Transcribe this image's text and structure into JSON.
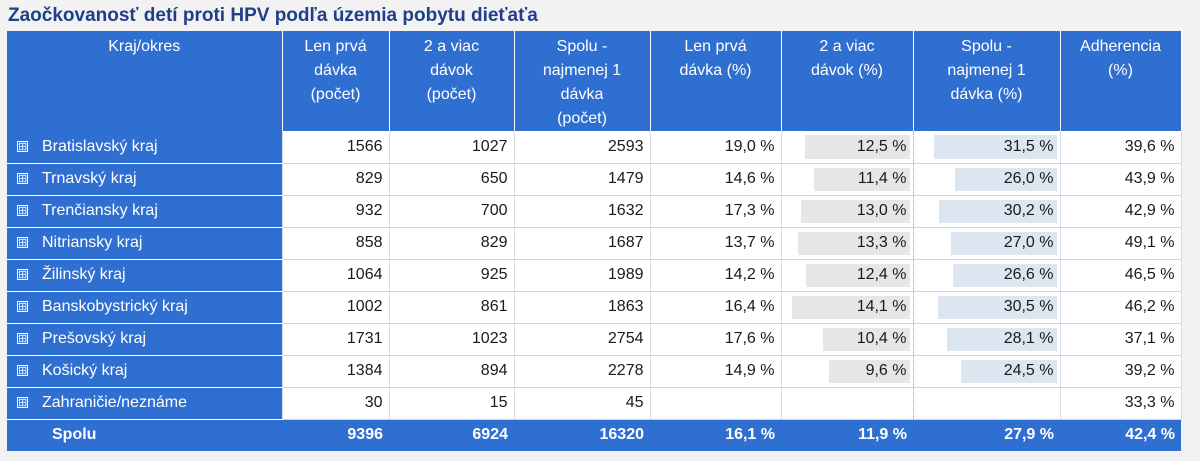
{
  "title": "Zaočkovanosť detí proti HPV podľa územia pobytu dieťaťa",
  "chart_data": {
    "type": "table",
    "columns": [
      "Kraj/okres",
      "Len prvá\ndávka\n(počet)",
      "2 a viac\ndávok\n(počet)",
      "Spolu -\nnajmenej 1\ndávka\n(počet)",
      "Len prvá\ndávka (%)",
      "2 a viac\ndávok (%)",
      "Spolu -\nnajmenej 1\ndávka (%)",
      "Adherencia\n(%)"
    ],
    "expand_symbol": "⊞",
    "rows": [
      {
        "name": "Bratislavský kraj",
        "first": "1566",
        "multi": "1027",
        "total": "2593",
        "first_pct": "19,0 %",
        "multi_pct": "12,5 %",
        "total_pct": "31,5 %",
        "adherence": "39,6 %",
        "multi_val": 12.5,
        "total_val": 31.5
      },
      {
        "name": "Trnavský kraj",
        "first": "829",
        "multi": "650",
        "total": "1479",
        "first_pct": "14,6 %",
        "multi_pct": "11,4 %",
        "total_pct": "26,0 %",
        "adherence": "43,9 %",
        "multi_val": 11.4,
        "total_val": 26.0
      },
      {
        "name": "Trenčiansky kraj",
        "first": "932",
        "multi": "700",
        "total": "1632",
        "first_pct": "17,3 %",
        "multi_pct": "13,0 %",
        "total_pct": "30,2 %",
        "adherence": "42,9 %",
        "multi_val": 13.0,
        "total_val": 30.2
      },
      {
        "name": "Nitriansky kraj",
        "first": "858",
        "multi": "829",
        "total": "1687",
        "first_pct": "13,7 %",
        "multi_pct": "13,3 %",
        "total_pct": "27,0 %",
        "adherence": "49,1 %",
        "multi_val": 13.3,
        "total_val": 27.0
      },
      {
        "name": "Žilinský kraj",
        "first": "1064",
        "multi": "925",
        "total": "1989",
        "first_pct": "14,2 %",
        "multi_pct": "12,4 %",
        "total_pct": "26,6 %",
        "adherence": "46,5 %",
        "multi_val": 12.4,
        "total_val": 26.6
      },
      {
        "name": "Banskobystrický kraj",
        "first": "1002",
        "multi": "861",
        "total": "1863",
        "first_pct": "16,4 %",
        "multi_pct": "14,1 %",
        "total_pct": "30,5 %",
        "adherence": "46,2 %",
        "multi_val": 14.1,
        "total_val": 30.5
      },
      {
        "name": "Prešovský kraj",
        "first": "1731",
        "multi": "1023",
        "total": "2754",
        "first_pct": "17,6 %",
        "multi_pct": "10,4 %",
        "total_pct": "28,1 %",
        "adherence": "37,1 %",
        "multi_val": 10.4,
        "total_val": 28.1
      },
      {
        "name": "Košický kraj",
        "first": "1384",
        "multi": "894",
        "total": "2278",
        "first_pct": "14,9 %",
        "multi_pct": "9,6 %",
        "total_pct": "24,5 %",
        "adherence": "39,2 %",
        "multi_val": 9.6,
        "total_val": 24.5
      },
      {
        "name": "Zahraničie/neznáme",
        "first": "30",
        "multi": "15",
        "total": "45",
        "first_pct": "",
        "multi_pct": "",
        "total_pct": "",
        "adherence": "33,3 %",
        "multi_val": null,
        "total_val": null
      }
    ],
    "total_row": {
      "name": "Spolu",
      "first": "9396",
      "multi": "6924",
      "total": "16320",
      "first_pct": "16,1 %",
      "multi_pct": "11,9 %",
      "total_pct": "27,9 %",
      "adherence": "42,4 %"
    },
    "bar_scale_max": {
      "multi_pct": 14.1,
      "total_pct": 31.5
    },
    "colors": {
      "header": "#2f6fd1",
      "title": "#1f3f8a",
      "bar_gray": "#e6e6e6",
      "bar_blue": "#dce6f1"
    }
  }
}
